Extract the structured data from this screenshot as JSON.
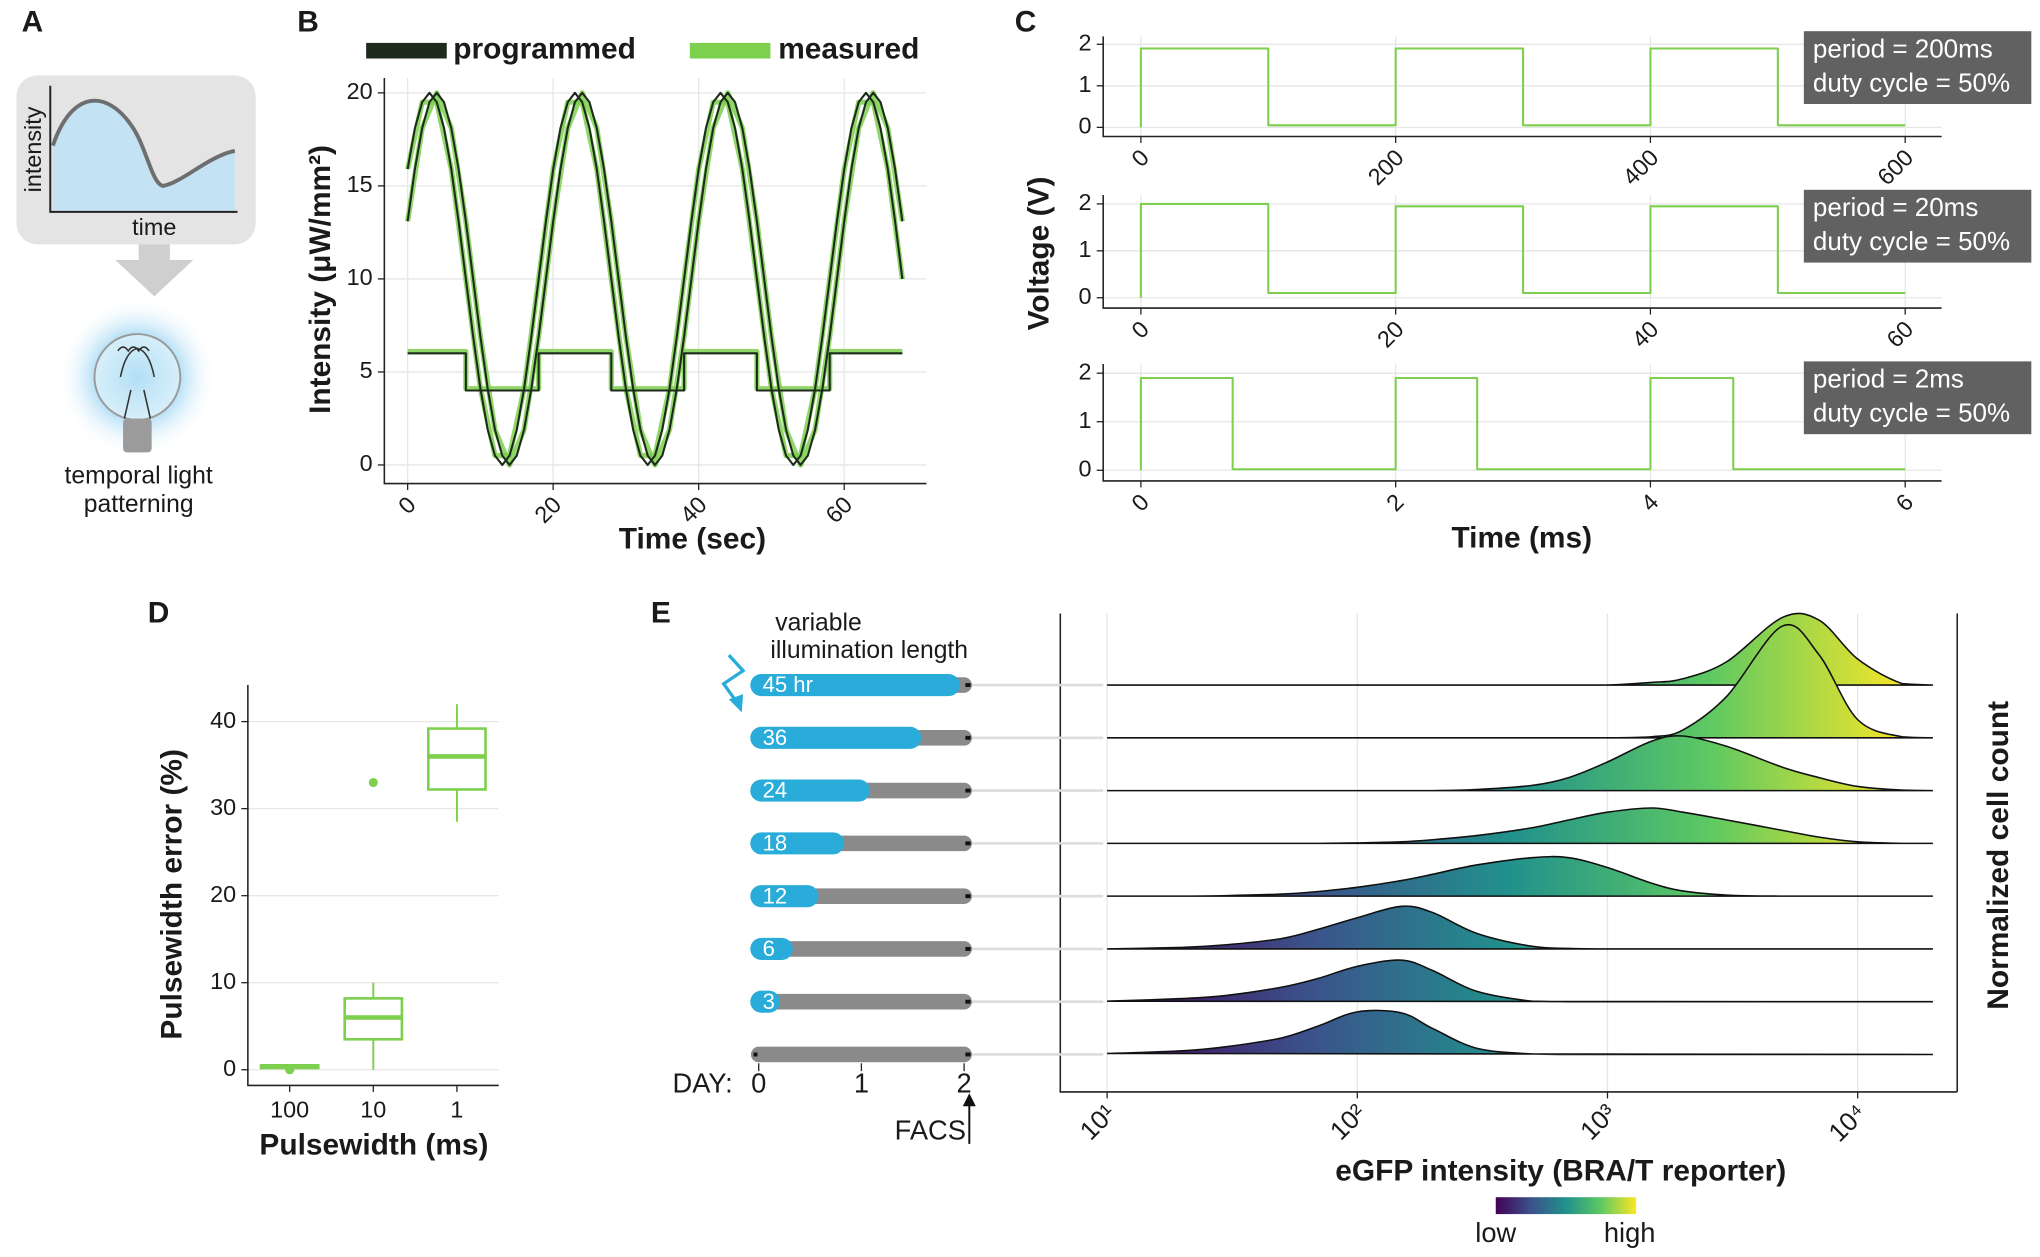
{
  "panel_labels": [
    "A",
    "B",
    "C",
    "D",
    "E"
  ],
  "panel_a": {
    "y_label": "intensity",
    "x_label": "time",
    "caption": [
      "temporal light",
      "patterning"
    ]
  },
  "chart_data": [
    {
      "type": "line",
      "x_label": "Time (sec)",
      "y_label": "Intensity (μW/mm²)",
      "xlim": [
        -3.2,
        71.3
      ],
      "xticks": [
        0,
        20,
        40,
        60
      ],
      "ylim": [
        -1,
        20.8
      ],
      "yticks": [
        0,
        5,
        10,
        15,
        20
      ],
      "grid": true,
      "legend": "top",
      "series": [
        {
          "name": "programmed",
          "color": "#1c2b1c",
          "lines": [
            {
              "x": [
                0,
                1,
                2,
                3,
                4,
                5,
                6,
                7,
                8,
                9,
                10,
                11,
                12,
                13,
                14,
                15,
                16,
                17,
                18,
                19,
                20,
                21,
                22,
                23,
                24,
                25,
                26,
                27,
                28,
                29,
                30,
                31,
                32,
                33,
                34,
                35,
                36,
                37,
                38,
                39,
                40,
                41,
                42,
                43,
                44,
                45,
                46,
                47,
                48,
                49,
                50,
                51,
                52,
                53,
                54,
                55,
                56,
                57,
                58,
                59,
                60,
                61,
                62,
                63,
                64,
                65,
                66,
                67,
                68
              ],
              "values": [
                15.9,
                18.1,
                19.5,
                20,
                19.5,
                18.1,
                15.9,
                13.1,
                10,
                6.9,
                4.1,
                1.9,
                0.5,
                0,
                0.5,
                1.9,
                4.1,
                6.9,
                10,
                13.1,
                15.9,
                18.1,
                19.5,
                20,
                19.5,
                18.1,
                15.9,
                13.1,
                10,
                6.9,
                4.1,
                1.9,
                0.5,
                0,
                0.5,
                1.9,
                4.1,
                6.9,
                10,
                13.1,
                15.9,
                18.1,
                19.5,
                20,
                19.5,
                18.1,
                15.9,
                13.1,
                10,
                6.9,
                4.1,
                1.9,
                0.5,
                0,
                0.5,
                1.9,
                4.1,
                6.9,
                10,
                13.1,
                15.9,
                18.1,
                19.5,
                20,
                19.5,
                18.1,
                15.9,
                13.1,
                10
              ]
            },
            {
              "x": [
                0,
                1,
                2,
                3,
                4,
                5,
                6,
                7,
                8,
                9,
                10,
                11,
                12,
                13,
                14,
                15,
                16,
                17,
                18,
                19,
                20,
                21,
                22,
                23,
                24,
                25,
                26,
                27,
                28,
                29,
                30,
                31,
                32,
                33,
                34,
                35,
                36,
                37,
                38,
                39,
                40,
                41,
                42,
                43,
                44,
                45,
                46,
                47,
                48,
                49,
                50,
                51,
                52,
                53,
                54,
                55,
                56,
                57,
                58,
                59,
                60,
                61,
                62,
                63,
                64,
                65,
                66,
                67,
                68
              ],
              "values": [
                13.1,
                15.9,
                18.1,
                19.5,
                20,
                19.5,
                18.1,
                15.9,
                13.1,
                10,
                6.9,
                4.1,
                1.9,
                0.5,
                0,
                0.5,
                1.9,
                4.1,
                6.9,
                10,
                13.1,
                15.9,
                18.1,
                19.5,
                20,
                19.5,
                18.1,
                15.9,
                13.1,
                10,
                6.9,
                4.1,
                1.9,
                0.5,
                0,
                0.5,
                1.9,
                4.1,
                6.9,
                10,
                13.1,
                15.9,
                18.1,
                19.5,
                20,
                19.5,
                18.1,
                15.9,
                13.1,
                10,
                6.9,
                4.1,
                1.9,
                0.5,
                0,
                0.5,
                1.9,
                4.1,
                6.9,
                10,
                13.1,
                15.9,
                18.1,
                19.5,
                20,
                19.5,
                18.1,
                15.9,
                13.1
              ]
            },
            {
              "x": [
                0,
                8,
                8,
                18,
                18,
                28,
                28,
                38,
                38,
                48,
                48,
                58,
                58,
                68
              ],
              "values": [
                6,
                6,
                4,
                4,
                6,
                6,
                4,
                4,
                6,
                6,
                4,
                4,
                6,
                6
              ]
            }
          ]
        },
        {
          "name": "measured",
          "color": "#7dcf4e",
          "lines": [
            {
              "x": [
                0,
                2,
                4,
                6,
                8,
                10,
                12,
                14,
                16,
                18,
                20,
                22,
                24,
                26,
                28,
                30,
                32,
                34,
                36,
                38,
                40,
                42,
                44,
                46,
                48,
                50,
                52,
                54,
                56,
                58,
                60,
                62,
                64,
                66,
                68
              ],
              "values": [
                15.9,
                19.5,
                19.5,
                15.9,
                10,
                4.1,
                0.5,
                0.5,
                4.1,
                10,
                15.9,
                19.5,
                19.5,
                15.9,
                10,
                4.1,
                0.5,
                0.5,
                4.1,
                10,
                15.9,
                19.5,
                19.5,
                15.9,
                10,
                4.1,
                0.5,
                0.5,
                4.1,
                10,
                15.9,
                19.5,
                19.5,
                15.9,
                10
              ]
            },
            {
              "x": [
                0,
                2,
                4,
                6,
                8,
                10,
                12,
                14,
                16,
                18,
                20,
                22,
                24,
                26,
                28,
                30,
                32,
                34,
                36,
                38,
                40,
                42,
                44,
                46,
                48,
                50,
                52,
                54,
                56,
                58,
                60,
                62,
                64,
                66,
                68
              ],
              "values": [
                13.1,
                18.1,
                20,
                18.1,
                13.1,
                6.9,
                1.9,
                0,
                1.9,
                6.9,
                13.1,
                18.1,
                20,
                18.1,
                13.1,
                6.9,
                1.9,
                0,
                1.9,
                6.9,
                13.1,
                18.1,
                20,
                18.1,
                13.1,
                6.9,
                1.9,
                0,
                1.9,
                6.9,
                13.1,
                18.1,
                20,
                18.1,
                13.1
              ]
            },
            {
              "x": [
                0,
                8,
                8,
                18,
                18,
                28,
                28,
                38,
                38,
                48,
                48,
                58,
                58,
                68
              ],
              "values": [
                6.1,
                6.1,
                4.1,
                4.1,
                6.1,
                6.1,
                4.1,
                4.1,
                6.1,
                6.1,
                4.1,
                4.1,
                6.1,
                6.1
              ]
            }
          ]
        }
      ]
    },
    {
      "type": "line",
      "y_label": "Voltage (V)",
      "xlim": [
        -29.6,
        628.6
      ],
      "xticks": [
        0,
        200,
        400,
        600
      ],
      "ylim": [
        -0.22,
        2.19
      ],
      "yticks": [
        0,
        1,
        2
      ],
      "grid": true,
      "annotation": [
        "period = 200ms",
        "duty cycle = 50%"
      ],
      "series": [
        {
          "color": "#7dcf4e",
          "x": [
            0,
            0,
            100,
            100,
            200,
            200,
            300,
            300,
            400,
            400,
            500,
            500,
            600
          ],
          "values": [
            0,
            1.9,
            1.9,
            0.05,
            0.05,
            1.9,
            1.9,
            0.05,
            0.05,
            1.9,
            1.9,
            0.05,
            0.05
          ]
        }
      ]
    },
    {
      "type": "line",
      "xlim": [
        -2.96,
        62.86
      ],
      "xticks": [
        0,
        20,
        40,
        60
      ],
      "ylim": [
        -0.22,
        2.19
      ],
      "yticks": [
        0,
        1,
        2
      ],
      "grid": true,
      "annotation": [
        "period = 20ms",
        "duty cycle = 50%"
      ],
      "series": [
        {
          "color": "#7dcf4e",
          "x": [
            0,
            0,
            10,
            10,
            20,
            20,
            30,
            30,
            40,
            40,
            50,
            50,
            60
          ],
          "values": [
            0,
            2,
            2,
            0.1,
            0.1,
            1.95,
            1.95,
            0.1,
            0.1,
            1.95,
            1.95,
            0.1,
            0.1
          ]
        }
      ]
    },
    {
      "type": "line",
      "x_label": "Time (ms)",
      "xlim": [
        -0.296,
        6.286
      ],
      "xticks": [
        0,
        2,
        4,
        6
      ],
      "ylim": [
        -0.22,
        2.19
      ],
      "yticks": [
        0,
        1,
        2
      ],
      "grid": true,
      "annotation": [
        "period = 2ms",
        "duty cycle = 50%"
      ],
      "series": [
        {
          "color": "#7dcf4e",
          "x": [
            0,
            0,
            0.72,
            0.72,
            2,
            2,
            2.64,
            2.64,
            4,
            4,
            4.65,
            4.65,
            6
          ],
          "values": [
            0,
            1.9,
            1.9,
            0.02,
            0.02,
            1.9,
            1.9,
            0.02,
            0.02,
            1.9,
            1.9,
            0.02,
            0.02
          ]
        }
      ]
    },
    {
      "type": "box",
      "x_label": "Pulsewidth (ms)",
      "y_label": "Pulsewidth error (%)",
      "categories": [
        "100",
        "10",
        "1"
      ],
      "ylim": [
        -1.8,
        44.2
      ],
      "yticks": [
        0,
        10,
        20,
        30,
        40
      ],
      "grid": true,
      "color": "#7dcf4e",
      "boxes": [
        {
          "min": 0,
          "q1": 0.2,
          "median": 0.4,
          "q3": 0.5,
          "max": 0.6,
          "outliers": [
            0
          ]
        },
        {
          "min": 0,
          "q1": 3.5,
          "median": 6,
          "q3": 8.2,
          "max": 10,
          "outliers": [
            33
          ]
        },
        {
          "min": 28.5,
          "q1": 32.2,
          "median": 36,
          "q3": 39.2,
          "max": 42
        }
      ]
    },
    {
      "type": "ridgeline",
      "x_label": "eGFP intensity (BRA/T reporter)",
      "y_label": "Normalized cell count",
      "log_x": true,
      "xlim": [
        6.5,
        25000
      ],
      "grid": true,
      "xticks": [
        {
          "value": 10,
          "label": "10¹"
        },
        {
          "value": 100,
          "label": "10²"
        },
        {
          "value": 1000,
          "label": "10³"
        },
        {
          "value": 10000,
          "label": "10⁴"
        }
      ],
      "x": [
        10,
        20,
        30,
        50,
        70,
        100,
        150,
        200,
        300,
        500,
        700,
        1000,
        1500,
        2000,
        3000,
        5000,
        7000,
        10000,
        15000,
        20000
      ],
      "series": [
        {
          "values": [
            0,
            0,
            0,
            0,
            0,
            0,
            0,
            0,
            0,
            0,
            0,
            0,
            0.05,
            0.12,
            0.45,
            1.3,
            1.25,
            0.5,
            0.03,
            0
          ]
        },
        {
          "values": [
            0,
            0,
            0,
            0,
            0,
            0,
            0,
            0,
            0,
            0,
            0,
            0,
            0.02,
            0.15,
            0.8,
            2.15,
            1.6,
            0.35,
            0.02,
            0
          ]
        },
        {
          "values": [
            0,
            0,
            0,
            0,
            0,
            0,
            0,
            0,
            0.02,
            0.1,
            0.25,
            0.55,
            0.95,
            1.05,
            0.85,
            0.45,
            0.25,
            0.08,
            0.01,
            0
          ]
        },
        {
          "values": [
            0,
            0,
            0,
            0,
            0,
            0.01,
            0.03,
            0.07,
            0.15,
            0.3,
            0.45,
            0.6,
            0.68,
            0.6,
            0.45,
            0.25,
            0.12,
            0.03,
            0,
            0
          ]
        },
        {
          "values": [
            0,
            0,
            0.01,
            0.04,
            0.09,
            0.17,
            0.3,
            0.42,
            0.6,
            0.74,
            0.74,
            0.55,
            0.25,
            0.1,
            0.02,
            0,
            0,
            0,
            0,
            0
          ]
        },
        {
          "values": [
            0,
            0.03,
            0.08,
            0.2,
            0.38,
            0.6,
            0.82,
            0.7,
            0.3,
            0.05,
            0.01,
            0,
            0,
            0,
            0,
            0,
            0,
            0,
            0,
            0
          ]
        },
        {
          "values": [
            0.01,
            0.06,
            0.12,
            0.28,
            0.45,
            0.68,
            0.8,
            0.6,
            0.2,
            0.01,
            0,
            0,
            0,
            0,
            0,
            0,
            0,
            0,
            0,
            0
          ]
        },
        {
          "values": [
            0.02,
            0.07,
            0.15,
            0.32,
            0.55,
            0.82,
            0.8,
            0.5,
            0.12,
            0.01,
            0,
            0,
            0,
            0,
            0,
            0,
            0,
            0,
            0,
            0
          ]
        }
      ],
      "colorbar": {
        "colors": [
          "#440154",
          "#3b528b",
          "#21918c",
          "#5ec962",
          "#fde725"
        ],
        "low_label": "low",
        "high_label": "high"
      },
      "timeline": {
        "title": [
          "variable",
          "illumination length"
        ],
        "axis_label": "DAY:",
        "xlim": [
          0,
          48
        ],
        "xticks": [
          {
            "value": 0,
            "label": "0"
          },
          {
            "value": 24,
            "label": "1"
          },
          {
            "value": 48,
            "label": "2"
          }
        ],
        "labels": [
          "45 hr",
          "36",
          "24",
          "18",
          "12",
          "6",
          "3",
          null
        ],
        "hours": [
          45,
          36,
          24,
          18,
          12,
          6,
          3,
          0
        ],
        "marker_label": "FACS",
        "color": "#29acd9",
        "track_color": "#8a8a8a"
      }
    }
  ]
}
